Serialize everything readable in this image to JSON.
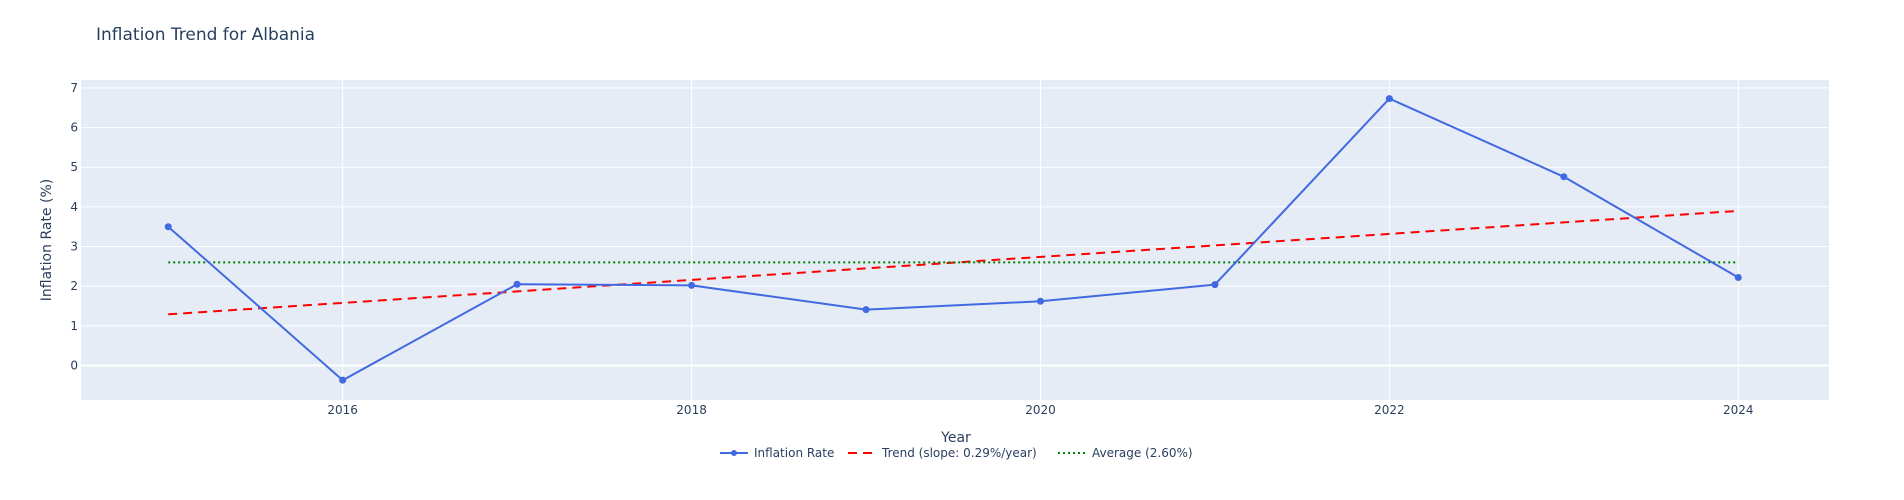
{
  "chart_data": {
    "type": "line",
    "title": "Inflation Trend for Albania",
    "xlabel": "Year",
    "ylabel": "Inflation Rate (%)",
    "x": [
      2015,
      2016,
      2017,
      2018,
      2019,
      2020,
      2021,
      2022,
      2023,
      2024
    ],
    "x_ticks": [
      2016,
      2018,
      2020,
      2022,
      2024
    ],
    "y_ticks": [
      0,
      1,
      2,
      3,
      4,
      5,
      6,
      7
    ],
    "xlim": [
      2014.5,
      2024.52
    ],
    "ylim": [
      -0.87,
      7.2
    ],
    "grid": true,
    "legend_position": "bottom-center",
    "series": [
      {
        "name": "Inflation Rate",
        "style": "line+markers",
        "color": "#4169e1",
        "values": [
          3.5,
          -0.37,
          2.05,
          2.02,
          1.41,
          1.62,
          2.04,
          6.73,
          4.76,
          2.22
        ]
      },
      {
        "name": "Trend (slope: 0.29%/year)",
        "style": "dash",
        "color": "#ff0000",
        "values": [
          1.29,
          1.58,
          1.87,
          2.16,
          2.45,
          2.74,
          3.03,
          3.32,
          3.61,
          3.9
        ]
      },
      {
        "name": "Average (2.60%)",
        "style": "dot",
        "color": "#008000",
        "values": [
          2.6,
          2.6,
          2.6,
          2.6,
          2.6,
          2.6,
          2.6,
          2.6,
          2.6,
          2.6
        ]
      }
    ]
  },
  "colors": {
    "plot_bg": "#e5ecf6",
    "grid": "#ffffff",
    "text": "#2a3f5f"
  }
}
